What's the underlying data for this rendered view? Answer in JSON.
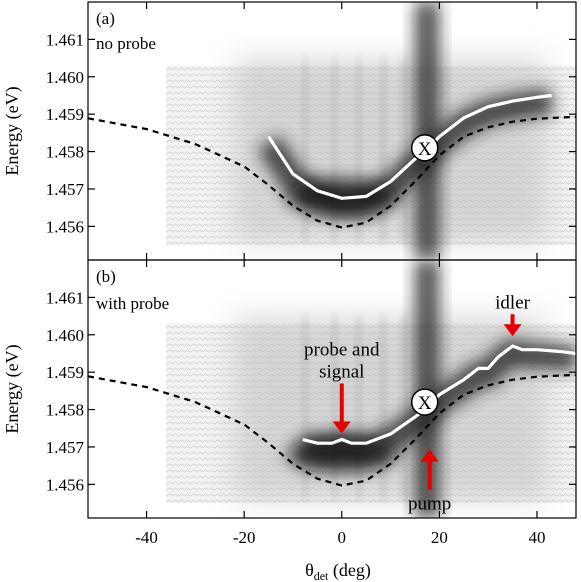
{
  "chart_data": [
    {
      "type": "line",
      "panel_label": "(a)",
      "panel_note": "no probe",
      "ylabel": "Energy (eV)",
      "xlim": [
        -52,
        48
      ],
      "ylim": [
        1.4551,
        1.462
      ],
      "yticks": [
        1.456,
        1.457,
        1.458,
        1.459,
        1.46,
        1.461
      ],
      "grid": false,
      "series": [
        {
          "style": "dashed-black",
          "x": [
            -52,
            -40,
            -30,
            -20,
            -15,
            -10,
            -5,
            0,
            5,
            10,
            15,
            20,
            25,
            30,
            35,
            40,
            48
          ],
          "y": [
            1.45889,
            1.4586,
            1.4582,
            1.4576,
            1.4571,
            1.45655,
            1.45615,
            1.45597,
            1.4561,
            1.45655,
            1.4572,
            1.4579,
            1.4584,
            1.45865,
            1.4588,
            1.45888,
            1.45893
          ]
        },
        {
          "style": "solid-white",
          "x": [
            -15,
            -10,
            -5,
            0,
            5,
            10,
            15,
            17,
            20,
            25,
            30,
            35,
            40,
            43
          ],
          "y": [
            1.4584,
            1.4574,
            1.45695,
            1.45675,
            1.4568,
            1.4572,
            1.4578,
            1.458,
            1.4584,
            1.4589,
            1.4592,
            1.45935,
            1.45945,
            1.4595
          ]
        }
      ],
      "markers": [
        {
          "label": "X",
          "x": 17,
          "y": 1.4581
        }
      ]
    },
    {
      "type": "line",
      "panel_label": "(b)",
      "panel_note": "with probe",
      "xlabel_main": "θ",
      "xlabel_sub": "det",
      "xlabel_unit": " (deg)",
      "ylabel": "Energy (eV)",
      "xlim": [
        -52,
        48
      ],
      "ylim": [
        1.4551,
        1.462
      ],
      "xticks": [
        -40,
        -20,
        0,
        20,
        40
      ],
      "yticks": [
        1.456,
        1.457,
        1.458,
        1.459,
        1.46,
        1.461
      ],
      "grid": false,
      "series": [
        {
          "style": "dashed-black",
          "x": [
            -52,
            -40,
            -30,
            -20,
            -15,
            -10,
            -5,
            0,
            5,
            10,
            15,
            20,
            25,
            30,
            35,
            40,
            48
          ],
          "y": [
            1.45889,
            1.4586,
            1.4582,
            1.4576,
            1.4571,
            1.45655,
            1.45615,
            1.45597,
            1.4561,
            1.45655,
            1.4572,
            1.4579,
            1.4584,
            1.45865,
            1.4588,
            1.45888,
            1.45893
          ]
        },
        {
          "style": "solid-white",
          "x": [
            -8,
            -5,
            -2,
            0,
            2,
            5,
            10,
            15,
            17,
            20,
            25,
            28,
            30,
            32,
            34,
            35,
            37,
            40,
            45,
            48
          ],
          "y": [
            1.4572,
            1.4571,
            1.4571,
            1.4572,
            1.4571,
            1.4571,
            1.45735,
            1.4578,
            1.458,
            1.4584,
            1.4588,
            1.4591,
            1.4591,
            1.4594,
            1.4596,
            1.4597,
            1.4596,
            1.4596,
            1.45955,
            1.4595
          ]
        }
      ],
      "markers": [
        {
          "label": "X",
          "x": 17,
          "y": 1.4582
        }
      ],
      "annotations": [
        {
          "lines": [
            "probe and",
            "signal"
          ],
          "x": 0,
          "y": 1.4572,
          "direction": "down"
        },
        {
          "lines": [
            "pump"
          ],
          "x": 18,
          "y": 1.4572,
          "direction": "up"
        },
        {
          "lines": [
            "idler"
          ],
          "x": 35,
          "y": 1.4598,
          "direction": "down"
        }
      ]
    }
  ]
}
